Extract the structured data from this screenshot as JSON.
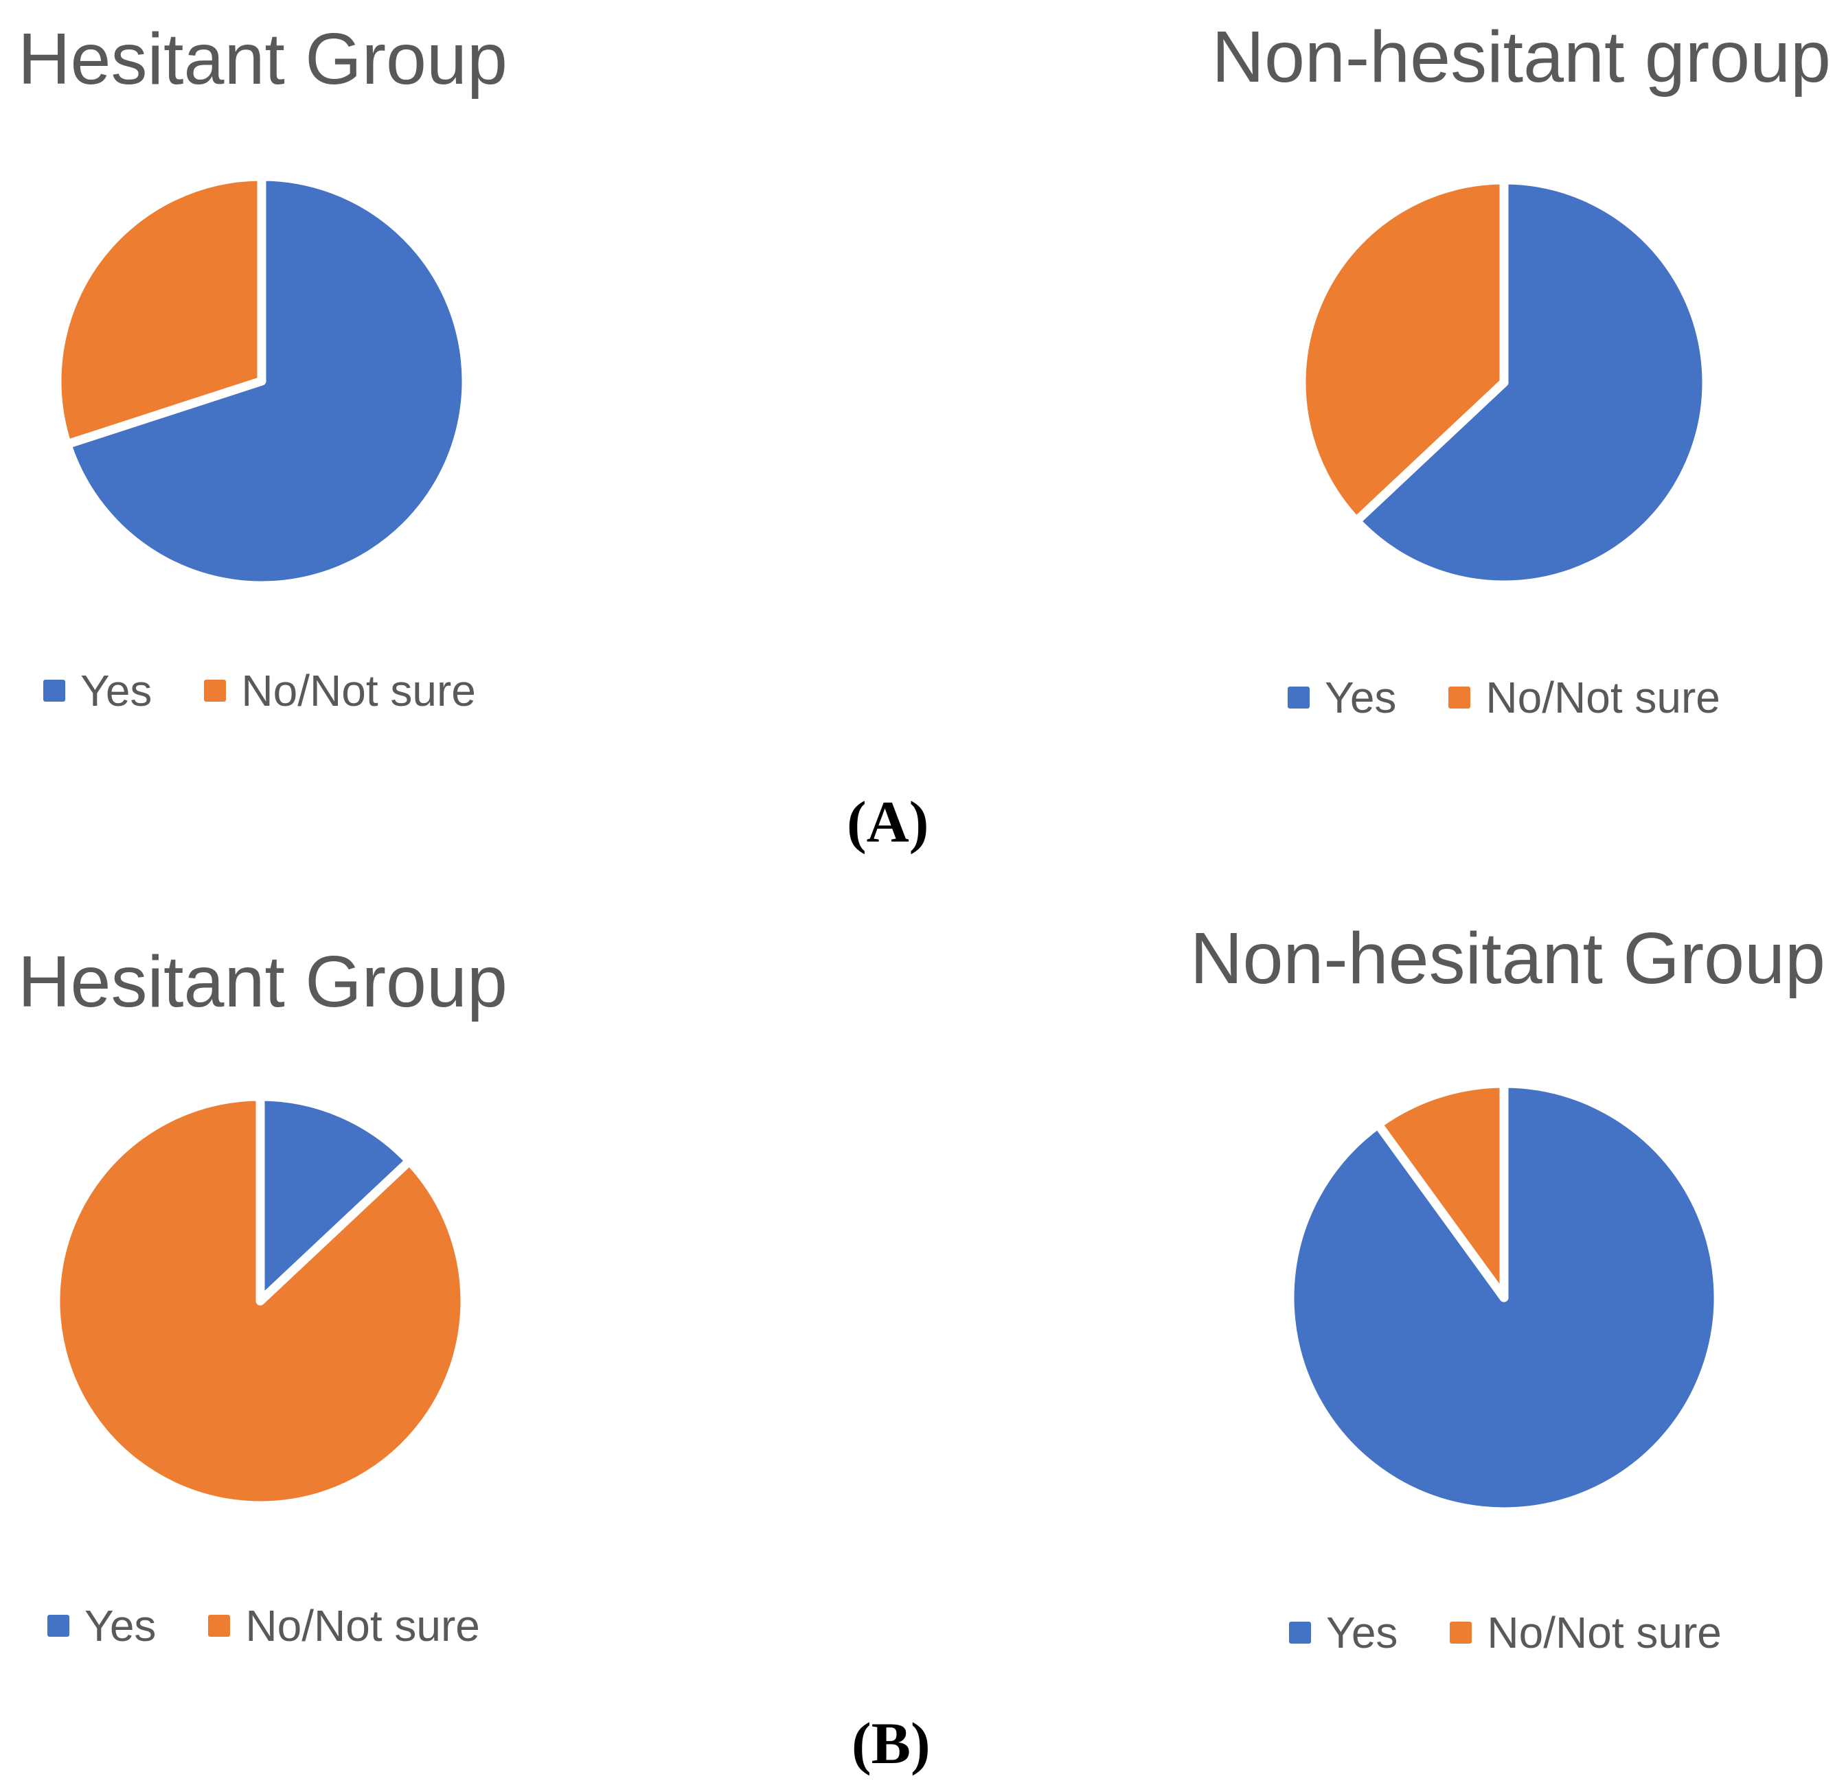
{
  "figure": {
    "background": "#ffffff",
    "panels": [
      {
        "id": "A",
        "label": "(A)"
      },
      {
        "id": "B",
        "label": "(B)"
      }
    ]
  },
  "colors": {
    "series": [
      "#4472C4",
      "#ED7D31"
    ],
    "title_text": "#595959",
    "legend_text": "#595959",
    "panel_label_text": "#000000",
    "slice_border": "#ffffff"
  },
  "chart_data": [
    {
      "type": "pie",
      "panel": "A",
      "title": "Hesitant Group",
      "labels": [
        "Yes",
        "No/Not sure"
      ],
      "values": [
        70,
        30
      ],
      "units": "percent (estimated from slice angles)",
      "colors": [
        "#4472C4",
        "#ED7D31"
      ],
      "start_angle_deg": 0,
      "direction": "clockwise",
      "legend_position": "bottom"
    },
    {
      "type": "pie",
      "panel": "A",
      "title": "Non-hesitant group",
      "labels": [
        "Yes",
        "No/Not sure"
      ],
      "values": [
        63,
        37
      ],
      "units": "percent (estimated from slice angles)",
      "colors": [
        "#4472C4",
        "#ED7D31"
      ],
      "start_angle_deg": 0,
      "direction": "clockwise",
      "legend_position": "bottom"
    },
    {
      "type": "pie",
      "panel": "B",
      "title": "Hesitant Group",
      "labels": [
        "Yes",
        "No/Not sure"
      ],
      "values": [
        13,
        87
      ],
      "units": "percent (estimated from slice angles)",
      "colors": [
        "#4472C4",
        "#ED7D31"
      ],
      "start_angle_deg": 0,
      "direction": "clockwise",
      "legend_position": "bottom"
    },
    {
      "type": "pie",
      "panel": "B",
      "title": "Non-hesitant Group",
      "labels": [
        "Yes",
        "No/Not sure"
      ],
      "values": [
        90,
        10
      ],
      "units": "percent (estimated from slice angles)",
      "colors": [
        "#4472C4",
        "#ED7D31"
      ],
      "start_angle_deg": 0,
      "direction": "clockwise",
      "legend_position": "bottom"
    }
  ]
}
